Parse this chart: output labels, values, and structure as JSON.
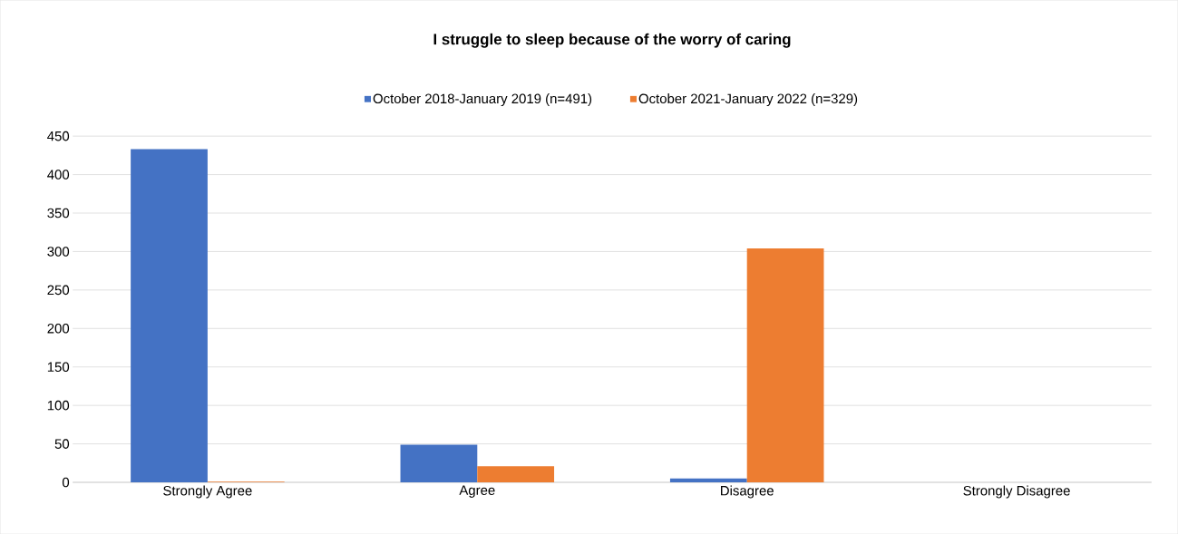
{
  "chart_data": {
    "type": "bar",
    "title": "I struggle to sleep because of the worry of caring",
    "categories": [
      "Strongly Agree",
      "Agree",
      "Disagree",
      "Strongly Disagree"
    ],
    "series": [
      {
        "name": "October 2018-January 2019 (n=491)",
        "color": "#4472c4",
        "values": [
          433,
          49,
          5,
          0
        ]
      },
      {
        "name": "October 2021-January 2022 (n=329)",
        "color": "#ed7d31",
        "values": [
          1,
          21,
          304,
          0
        ]
      }
    ],
    "ylim": [
      0,
      450
    ],
    "yticks": [
      0,
      50,
      100,
      150,
      200,
      250,
      300,
      350,
      400,
      450
    ],
    "grid": "y",
    "legend": "top"
  }
}
